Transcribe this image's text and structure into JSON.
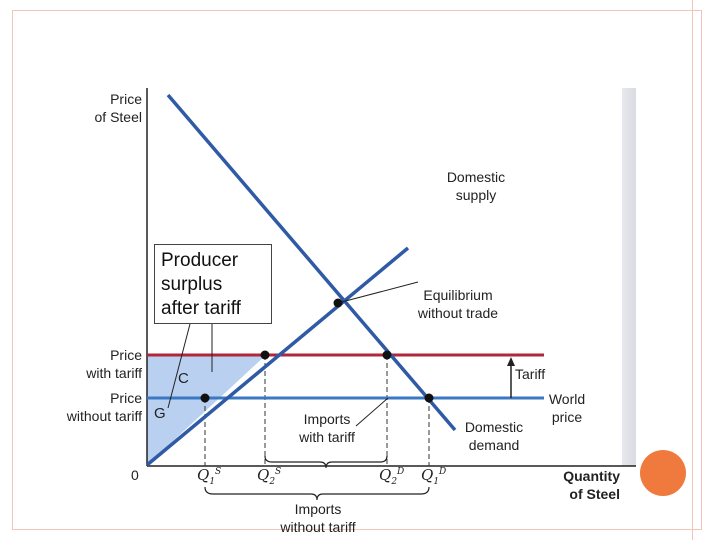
{
  "axes": {
    "y_label_line1": "Price",
    "y_label_line2": "of Steel",
    "x_label_line1": "Quantity",
    "x_label_line2": "of Steel",
    "origin": "0"
  },
  "curves": {
    "supply_line1": "Domestic",
    "supply_line2": "supply",
    "demand_line1": "Domestic",
    "demand_line2": "demand"
  },
  "prices": {
    "with_tariff_line1": "Price",
    "with_tariff_line2": "with tariff",
    "without_tariff_line1": "Price",
    "without_tariff_line2": "without tariff",
    "world_line1": "World",
    "world_line2": "price",
    "tariff": "Tariff"
  },
  "annotations": {
    "equilibrium_line1": "Equilibrium",
    "equilibrium_line2": "without trade",
    "producer_surplus_line1": "Producer",
    "producer_surplus_line2": "surplus",
    "producer_surplus_line3": "after tariff",
    "region_c": "C",
    "region_g": "G",
    "imports_with_tariff_line1": "Imports",
    "imports_with_tariff_line2": "with tariff",
    "imports_without_tariff_line1": "Imports",
    "imports_without_tariff_line2": "without tariff"
  },
  "quantities": {
    "q1s": {
      "base": "Q",
      "sub": "1",
      "sup": "S"
    },
    "q2s": {
      "base": "Q",
      "sub": "2",
      "sup": "S"
    },
    "q2d": {
      "base": "Q",
      "sub": "2",
      "sup": "D"
    },
    "q1d": {
      "base": "Q",
      "sub": "1",
      "sup": "D"
    }
  },
  "colors": {
    "supply": "#2f5aa6",
    "demand": "#2f5aa6",
    "tariff_price": "#b0263a",
    "world_price": "#3a78c4",
    "surplus_fill": "#b9d0f0"
  }
}
